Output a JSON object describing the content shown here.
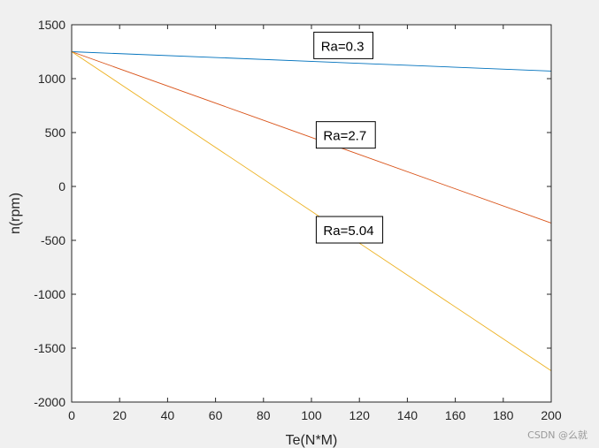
{
  "chart_data": {
    "type": "line",
    "title": "",
    "xlabel": "Te(N*M)",
    "ylabel": "n(rpm)",
    "xlim": [
      0,
      200
    ],
    "ylim": [
      -2000,
      1500
    ],
    "xticks": [
      0,
      20,
      40,
      60,
      80,
      100,
      120,
      140,
      160,
      180,
      200
    ],
    "yticks": [
      -2000,
      -1500,
      -1000,
      -500,
      0,
      500,
      1000,
      1500
    ],
    "xtick_labels": [
      "0",
      "20",
      "40",
      "60",
      "80",
      "100",
      "120",
      "140",
      "160",
      "180",
      "200"
    ],
    "ytick_labels": [
      "-2000",
      "-1500",
      "-1000",
      "-500",
      "0",
      "500",
      "1000",
      "1500"
    ],
    "grid": false,
    "series": [
      {
        "x": [
          0,
          200
        ],
        "y": [
          1250,
          1070
        ],
        "color": "#0072bd"
      },
      {
        "x": [
          0,
          200
        ],
        "y": [
          1250,
          -340
        ],
        "color": "#d95319"
      },
      {
        "x": [
          0,
          200
        ],
        "y": [
          1250,
          -1710
        ],
        "color": "#edb120"
      }
    ],
    "annotations": [
      {
        "text": "Ra=0.3",
        "x": 101,
        "y": 1300
      },
      {
        "text": "Ra=2.7",
        "x": 102,
        "y": 470
      },
      {
        "text": "Ra=5.04",
        "x": 102,
        "y": -410
      }
    ]
  },
  "watermark": "CSDN @么就"
}
